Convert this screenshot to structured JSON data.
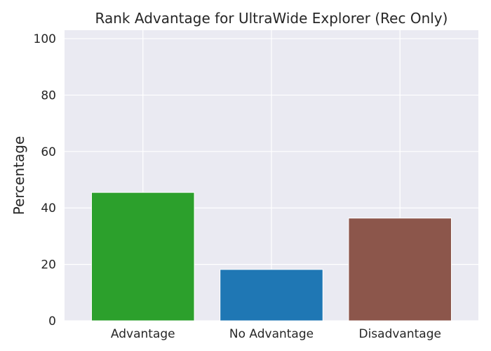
{
  "chart_data": {
    "type": "bar",
    "title": "Rank Advantage for UltraWide Explorer (Rec Only)",
    "xlabel": "",
    "ylabel": "Percentage",
    "categories": [
      "Advantage",
      "No Advantage",
      "Disadvantage"
    ],
    "values": [
      45.5,
      18.2,
      36.4
    ],
    "colors": [
      "#2ca02c",
      "#1f77b4",
      "#8c564b"
    ],
    "ylim": [
      0,
      103
    ],
    "yticks": [
      "0",
      "20",
      "40",
      "60",
      "80",
      "100"
    ],
    "grid": true,
    "background": "#eaeaf2"
  }
}
